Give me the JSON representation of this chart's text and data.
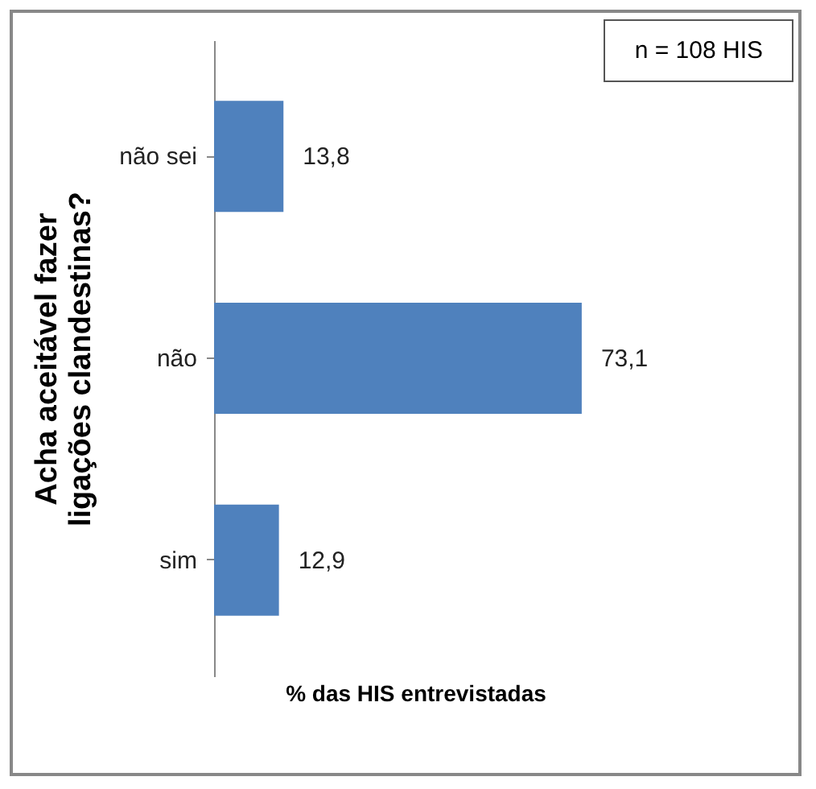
{
  "chart_data": {
    "type": "bar",
    "orientation": "horizontal",
    "xlabel": "% das HIS entrevistadas",
    "ylabel": "Acha aceitável fazer ligações clandestinas?",
    "categories": [
      "não sei",
      "não",
      "sim"
    ],
    "values": [
      13.8,
      73.1,
      12.9
    ],
    "value_labels": [
      "13,8",
      "73,1",
      "12,9"
    ],
    "color": "#4f81bd",
    "annotations": [
      "n = 108 HIS"
    ]
  }
}
